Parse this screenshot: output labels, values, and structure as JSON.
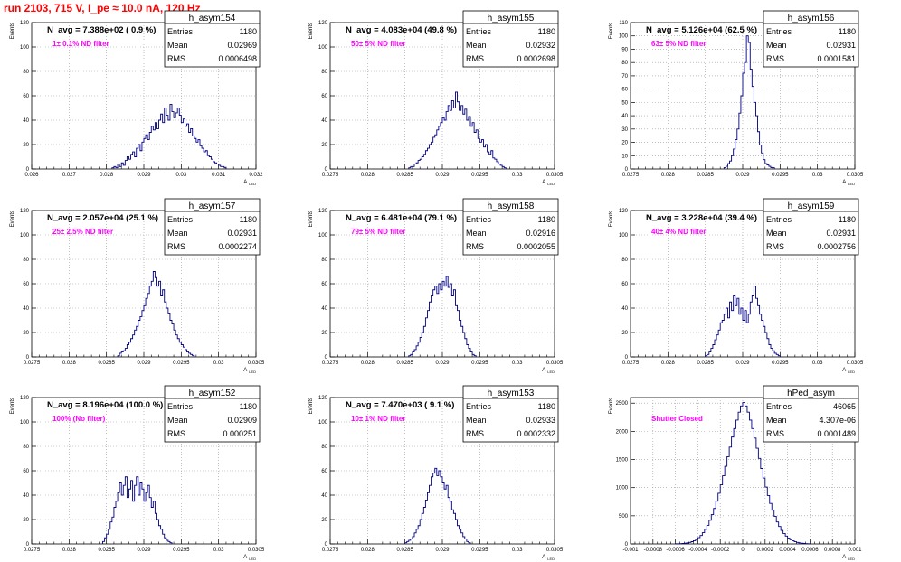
{
  "page_title": "run 2103,   715 V, I_pe ≈ 10.0 nA, 120 Hz",
  "colors": {
    "title": "#ff0000",
    "annotation": "#ff00ff",
    "histogram": "#000080",
    "grid": "#999999",
    "frame": "#000000"
  },
  "chart_data": [
    {
      "type": "histogram",
      "title": "h_asym154",
      "ylabel": "Events",
      "xlabel": "A_LED",
      "stats": {
        "entries_label": "Entries",
        "entries": "1180",
        "mean_label": "Mean",
        "mean": "0.02969",
        "rms_label": "RMS",
        "rms": "0.0006498"
      },
      "n_avg": "N_avg = 7.388e+02 ( 0.9 %)",
      "note": "1± 0.1% ND filter",
      "xlim": [
        0.026,
        0.032
      ],
      "ylim": [
        0,
        120
      ],
      "xticks": [
        "0.026",
        "0.027",
        "0.028",
        "0.029",
        "0.03",
        "0.031",
        "0.032"
      ],
      "yticks": [
        "0",
        "20",
        "40",
        "60",
        "80",
        "100",
        "120"
      ],
      "bin_start": 0.02815,
      "bin_width": 5e-05,
      "values": [
        1,
        2,
        1,
        4,
        2,
        5,
        3,
        7,
        10,
        8,
        12,
        14,
        10,
        17,
        20,
        15,
        22,
        25,
        28,
        24,
        30,
        35,
        32,
        38,
        33,
        40,
        45,
        38,
        50,
        44,
        40,
        53,
        47,
        42,
        46,
        50,
        44,
        38,
        41,
        35,
        37,
        30,
        33,
        27,
        25,
        22,
        24,
        19,
        17,
        14,
        15,
        11,
        10,
        8,
        6,
        5,
        4,
        3,
        2,
        2,
        1
      ]
    },
    {
      "type": "histogram",
      "title": "h_asym155",
      "ylabel": "Events",
      "xlabel": "A_LED",
      "stats": {
        "entries_label": "Entries",
        "entries": "1180",
        "mean_label": "Mean",
        "mean": "0.02932",
        "rms_label": "RMS",
        "rms": "0.0002698"
      },
      "n_avg": "N_avg = 4.083e+04 (49.8 %)",
      "note": "50± 5% ND filter",
      "xlim": [
        0.0275,
        0.0305
      ],
      "ylim": [
        0,
        120
      ],
      "xticks": [
        "0.0275",
        "0.028",
        "0.0285",
        "0.029",
        "0.0295",
        "0.03",
        "0.0305"
      ],
      "yticks": [
        "0",
        "20",
        "40",
        "60",
        "80",
        "100",
        "120"
      ],
      "bin_start": 0.02855,
      "bin_width": 2.5e-05,
      "values": [
        1,
        2,
        2,
        4,
        5,
        7,
        8,
        10,
        12,
        15,
        17,
        20,
        22,
        26,
        28,
        32,
        35,
        38,
        42,
        40,
        47,
        52,
        48,
        56,
        50,
        63,
        55,
        48,
        52,
        45,
        49,
        40,
        43,
        35,
        38,
        30,
        32,
        25,
        22,
        24,
        18,
        20,
        14,
        12,
        15,
        9,
        8,
        6,
        4,
        3,
        2,
        1
      ]
    },
    {
      "type": "histogram",
      "title": "h_asym156",
      "ylabel": "Events",
      "xlabel": "A_LED",
      "stats": {
        "entries_label": "Entries",
        "entries": "1180",
        "mean_label": "Mean",
        "mean": "0.02931",
        "rms_label": "RMS",
        "rms": "0.0001581"
      },
      "n_avg": "N_avg = 5.126e+04 (62.5 %)",
      "note": "63± 5% ND filter",
      "xlim": [
        0.0275,
        0.0305
      ],
      "ylim": [
        0,
        110
      ],
      "xticks": [
        "0.0275",
        "0.028",
        "0.0285",
        "0.029",
        "0.0295",
        "0.03",
        "0.0305"
      ],
      "yticks": [
        "0",
        "10",
        "20",
        "30",
        "40",
        "50",
        "60",
        "70",
        "80",
        "90",
        "100",
        "110"
      ],
      "bin_start": 0.02875,
      "bin_width": 2.5e-05,
      "values": [
        1,
        2,
        4,
        6,
        10,
        15,
        22,
        30,
        42,
        55,
        72,
        80,
        100,
        95,
        75,
        62,
        50,
        40,
        28,
        18,
        12,
        7,
        4,
        3,
        2,
        1,
        1
      ]
    },
    {
      "type": "histogram",
      "title": "h_asym157",
      "ylabel": "Events",
      "xlabel": "A_LED",
      "stats": {
        "entries_label": "Entries",
        "entries": "1180",
        "mean_label": "Mean",
        "mean": "0.02931",
        "rms_label": "RMS",
        "rms": "0.0002274"
      },
      "n_avg": "N_avg = 2.057e+04 (25.1 %)",
      "note": "25± 2.5% ND filter",
      "xlim": [
        0.0275,
        0.0305
      ],
      "ylim": [
        0,
        120
      ],
      "xticks": [
        "0.0275",
        "0.028",
        "0.0285",
        "0.029",
        "0.0295",
        "0.03",
        "0.0305"
      ],
      "yticks": [
        "0",
        "20",
        "40",
        "60",
        "80",
        "100",
        "120"
      ],
      "bin_start": 0.02865,
      "bin_width": 2.5e-05,
      "values": [
        1,
        3,
        4,
        5,
        7,
        10,
        12,
        15,
        18,
        22,
        25,
        30,
        33,
        38,
        42,
        48,
        52,
        58,
        62,
        70,
        65,
        58,
        62,
        50,
        55,
        45,
        40,
        36,
        30,
        27,
        22,
        18,
        15,
        12,
        10,
        8,
        6,
        4,
        3,
        2,
        1
      ]
    },
    {
      "type": "histogram",
      "title": "h_asym158",
      "ylabel": "Events",
      "xlabel": "A_LED",
      "stats": {
        "entries_label": "Entries",
        "entries": "1180",
        "mean_label": "Mean",
        "mean": "0.02916",
        "rms_label": "RMS",
        "rms": "0.0002055"
      },
      "n_avg": "N_avg = 6.481e+04 (79.1 %)",
      "note": "79± 5% ND filter",
      "xlim": [
        0.0275,
        0.0305
      ],
      "ylim": [
        0,
        120
      ],
      "xticks": [
        "0.0275",
        "0.028",
        "0.0285",
        "0.029",
        "0.0295",
        "0.03",
        "0.0305"
      ],
      "yticks": [
        "0",
        "20",
        "40",
        "60",
        "80",
        "100",
        "120"
      ],
      "bin_start": 0.02855,
      "bin_width": 2.5e-05,
      "values": [
        1,
        2,
        4,
        6,
        9,
        12,
        16,
        20,
        25,
        32,
        38,
        45,
        50,
        55,
        58,
        52,
        60,
        55,
        62,
        58,
        66,
        57,
        60,
        50,
        55,
        42,
        38,
        30,
        25,
        20,
        15,
        10,
        7,
        4,
        2,
        1
      ]
    },
    {
      "type": "histogram",
      "title": "h_asym159",
      "ylabel": "Events",
      "xlabel": "A_LED",
      "stats": {
        "entries_label": "Entries",
        "entries": "1180",
        "mean_label": "Mean",
        "mean": "0.02931",
        "rms_label": "RMS",
        "rms": "0.0002756"
      },
      "n_avg": "N_avg = 3.228e+04 (39.4 %)",
      "note": "40± 4% ND filter",
      "xlim": [
        0.0275,
        0.0305
      ],
      "ylim": [
        0,
        120
      ],
      "xticks": [
        "0.0275",
        "0.028",
        "0.0285",
        "0.029",
        "0.0295",
        "0.03",
        "0.0305"
      ],
      "yticks": [
        "0",
        "20",
        "40",
        "60",
        "80",
        "100",
        "120"
      ],
      "bin_start": 0.0285,
      "bin_width": 2.5e-05,
      "values": [
        1,
        2,
        4,
        7,
        10,
        14,
        18,
        22,
        28,
        30,
        35,
        40,
        32,
        45,
        38,
        50,
        42,
        48,
        35,
        40,
        30,
        38,
        28,
        35,
        45,
        50,
        58,
        48,
        42,
        35,
        30,
        25,
        20,
        15,
        10,
        7,
        5,
        3,
        2,
        1
      ]
    },
    {
      "type": "histogram",
      "title": "h_asym152",
      "ylabel": "Events",
      "xlabel": "A_LED",
      "stats": {
        "entries_label": "Entries",
        "entries": "1180",
        "mean_label": "Mean",
        "mean": "0.02909",
        "rms_label": "RMS",
        "rms": "0.000251"
      },
      "n_avg": "N_avg = 8.196e+04 (100.0 %)",
      "note": "100% (No filter)",
      "xlim": [
        0.0275,
        0.0305
      ],
      "ylim": [
        0,
        120
      ],
      "xticks": [
        "0.0275",
        "0.028",
        "0.0285",
        "0.029",
        "0.0295",
        "0.03",
        "0.0305"
      ],
      "yticks": [
        "0",
        "20",
        "40",
        "60",
        "80",
        "100",
        "120"
      ],
      "bin_start": 0.02845,
      "bin_width": 2.5e-05,
      "values": [
        2,
        5,
        8,
        12,
        18,
        22,
        30,
        35,
        42,
        50,
        40,
        48,
        55,
        38,
        45,
        52,
        35,
        48,
        55,
        40,
        50,
        45,
        35,
        42,
        48,
        38,
        30,
        35,
        25,
        20,
        15,
        12,
        8,
        5,
        3,
        2,
        1
      ]
    },
    {
      "type": "histogram",
      "title": "h_asym153",
      "ylabel": "Events",
      "xlabel": "A_LED",
      "stats": {
        "entries_label": "Entries",
        "entries": "1180",
        "mean_label": "Mean",
        "mean": "0.02933",
        "rms_label": "RMS",
        "rms": "0.0002332"
      },
      "n_avg": "N_avg = 7.470e+03 ( 9.1 %)",
      "note": "10± 1% ND filter",
      "xlim": [
        0.0275,
        0.0305
      ],
      "ylim": [
        0,
        120
      ],
      "xticks": [
        "0.0275",
        "0.028",
        "0.0285",
        "0.029",
        "0.0295",
        "0.03",
        "0.0305"
      ],
      "yticks": [
        "0",
        "20",
        "40",
        "60",
        "80",
        "100",
        "120"
      ],
      "bin_start": 0.0285,
      "bin_width": 2.5e-05,
      "values": [
        1,
        2,
        3,
        4,
        6,
        9,
        12,
        15,
        20,
        25,
        30,
        36,
        42,
        48,
        55,
        58,
        62,
        56,
        60,
        55,
        50,
        45,
        48,
        38,
        35,
        28,
        25,
        20,
        15,
        12,
        9,
        6,
        4,
        2,
        1
      ]
    },
    {
      "type": "histogram",
      "title": "hPed_asym",
      "ylabel": "Events",
      "xlabel": "A_LED",
      "stats": {
        "entries_label": "Entries",
        "entries": "46065",
        "mean_label": "Mean",
        "mean": "4.307e-06",
        "rms_label": "RMS",
        "rms": "0.0001489"
      },
      "n_avg": "",
      "note": "Shutter Closed",
      "xlim": [
        -0.001,
        0.001
      ],
      "ylim": [
        0,
        2600
      ],
      "xticks": [
        "-0.001",
        "-0.0008",
        "-0.0006",
        "-0.0004",
        "-0.0002",
        "0",
        "0.0002",
        "0.0004",
        "0.0006",
        "0.0008",
        "0.001"
      ],
      "yticks": [
        "0",
        "500",
        "1000",
        "1500",
        "2000",
        "2500"
      ],
      "bin_start": -0.0006,
      "bin_width": 2e-05,
      "values": [
        2,
        3,
        5,
        8,
        12,
        18,
        27,
        40,
        57,
        80,
        112,
        150,
        200,
        260,
        330,
        420,
        520,
        630,
        760,
        900,
        1050,
        1210,
        1380,
        1550,
        1720,
        1900,
        2050,
        2200,
        2340,
        2450,
        2510,
        2450,
        2340,
        2200,
        2050,
        1880,
        1700,
        1520,
        1340,
        1170,
        1010,
        860,
        720,
        600,
        490,
        390,
        310,
        240,
        185,
        140,
        104,
        76,
        55,
        39,
        27,
        18,
        12,
        8,
        5,
        3
      ]
    }
  ]
}
